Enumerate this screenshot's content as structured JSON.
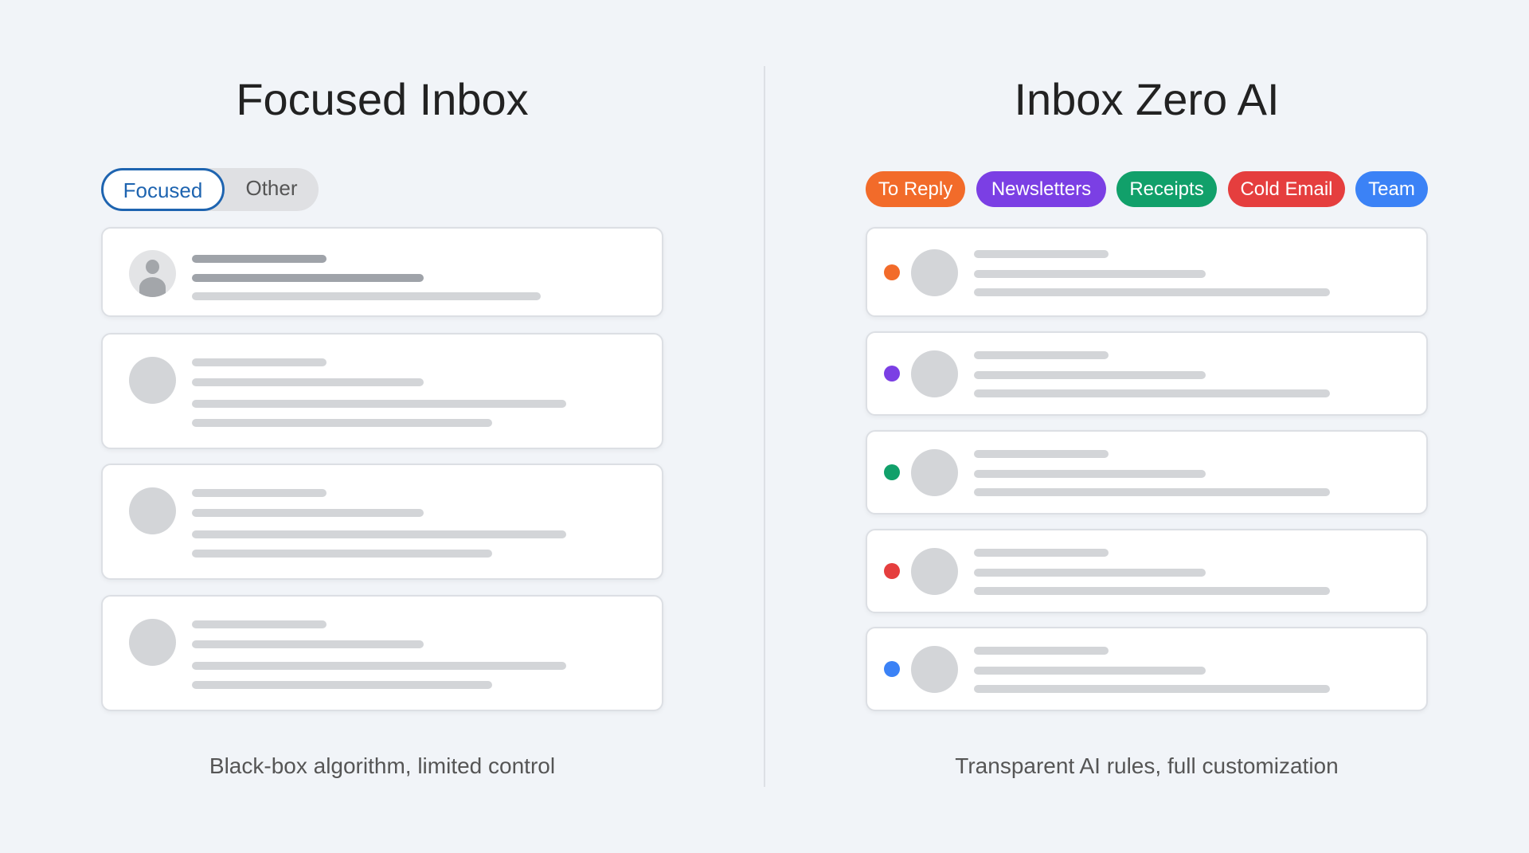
{
  "left": {
    "title": "Focused Inbox",
    "tabs": [
      {
        "label": "Focused",
        "active": true
      },
      {
        "label": "Other",
        "active": false
      }
    ],
    "caption": "Black-box algorithm, limited control"
  },
  "right": {
    "title": "Inbox Zero AI",
    "tags": [
      {
        "label": "To Reply",
        "color": "#f26b2a"
      },
      {
        "label": "Newsletters",
        "color": "#7b3fe4"
      },
      {
        "label": "Receipts",
        "color": "#11a06a"
      },
      {
        "label": "Cold Email",
        "color": "#e53e3e"
      },
      {
        "label": "Team",
        "color": "#3b82f6"
      }
    ],
    "caption": "Transparent AI rules, full customization"
  }
}
